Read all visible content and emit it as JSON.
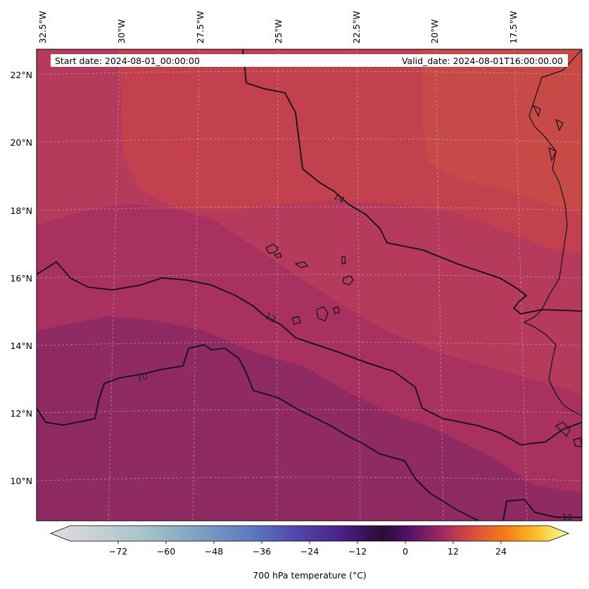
{
  "header": {
    "start_date": "Start date: 2024-08-01_00:00:00",
    "valid_date": "Valid_date: 2024-08-01T16:00:00.00"
  },
  "longitude_labels": [
    "32.5°W",
    "30°W",
    "27.5°W",
    "25°W",
    "22.5°W",
    "20°W",
    "17.5°W"
  ],
  "latitude_labels": [
    "22°N",
    "20°N",
    "18°N",
    "16°N",
    "14°N",
    "12°N",
    "10°N"
  ],
  "contour_labels": [
    "14",
    "12",
    "10",
    "10"
  ],
  "colorbar": {
    "label": "700 hPa temperature (°C)",
    "ticks": [
      "−72",
      "−60",
      "−48",
      "−36",
      "−24",
      "−12",
      "0",
      "12",
      "24"
    ],
    "tick_values": [
      -72,
      -60,
      -48,
      -36,
      -24,
      -12,
      0,
      12,
      24
    ],
    "range": [
      -84,
      36
    ],
    "extend": "both"
  },
  "colors": {
    "warm_zone": "#c8444b",
    "mid_zone": "#b1365e",
    "cool_zone": "#902a62",
    "contour": "#111111",
    "coast": "#111111",
    "grid": "#c9c9c9"
  }
}
